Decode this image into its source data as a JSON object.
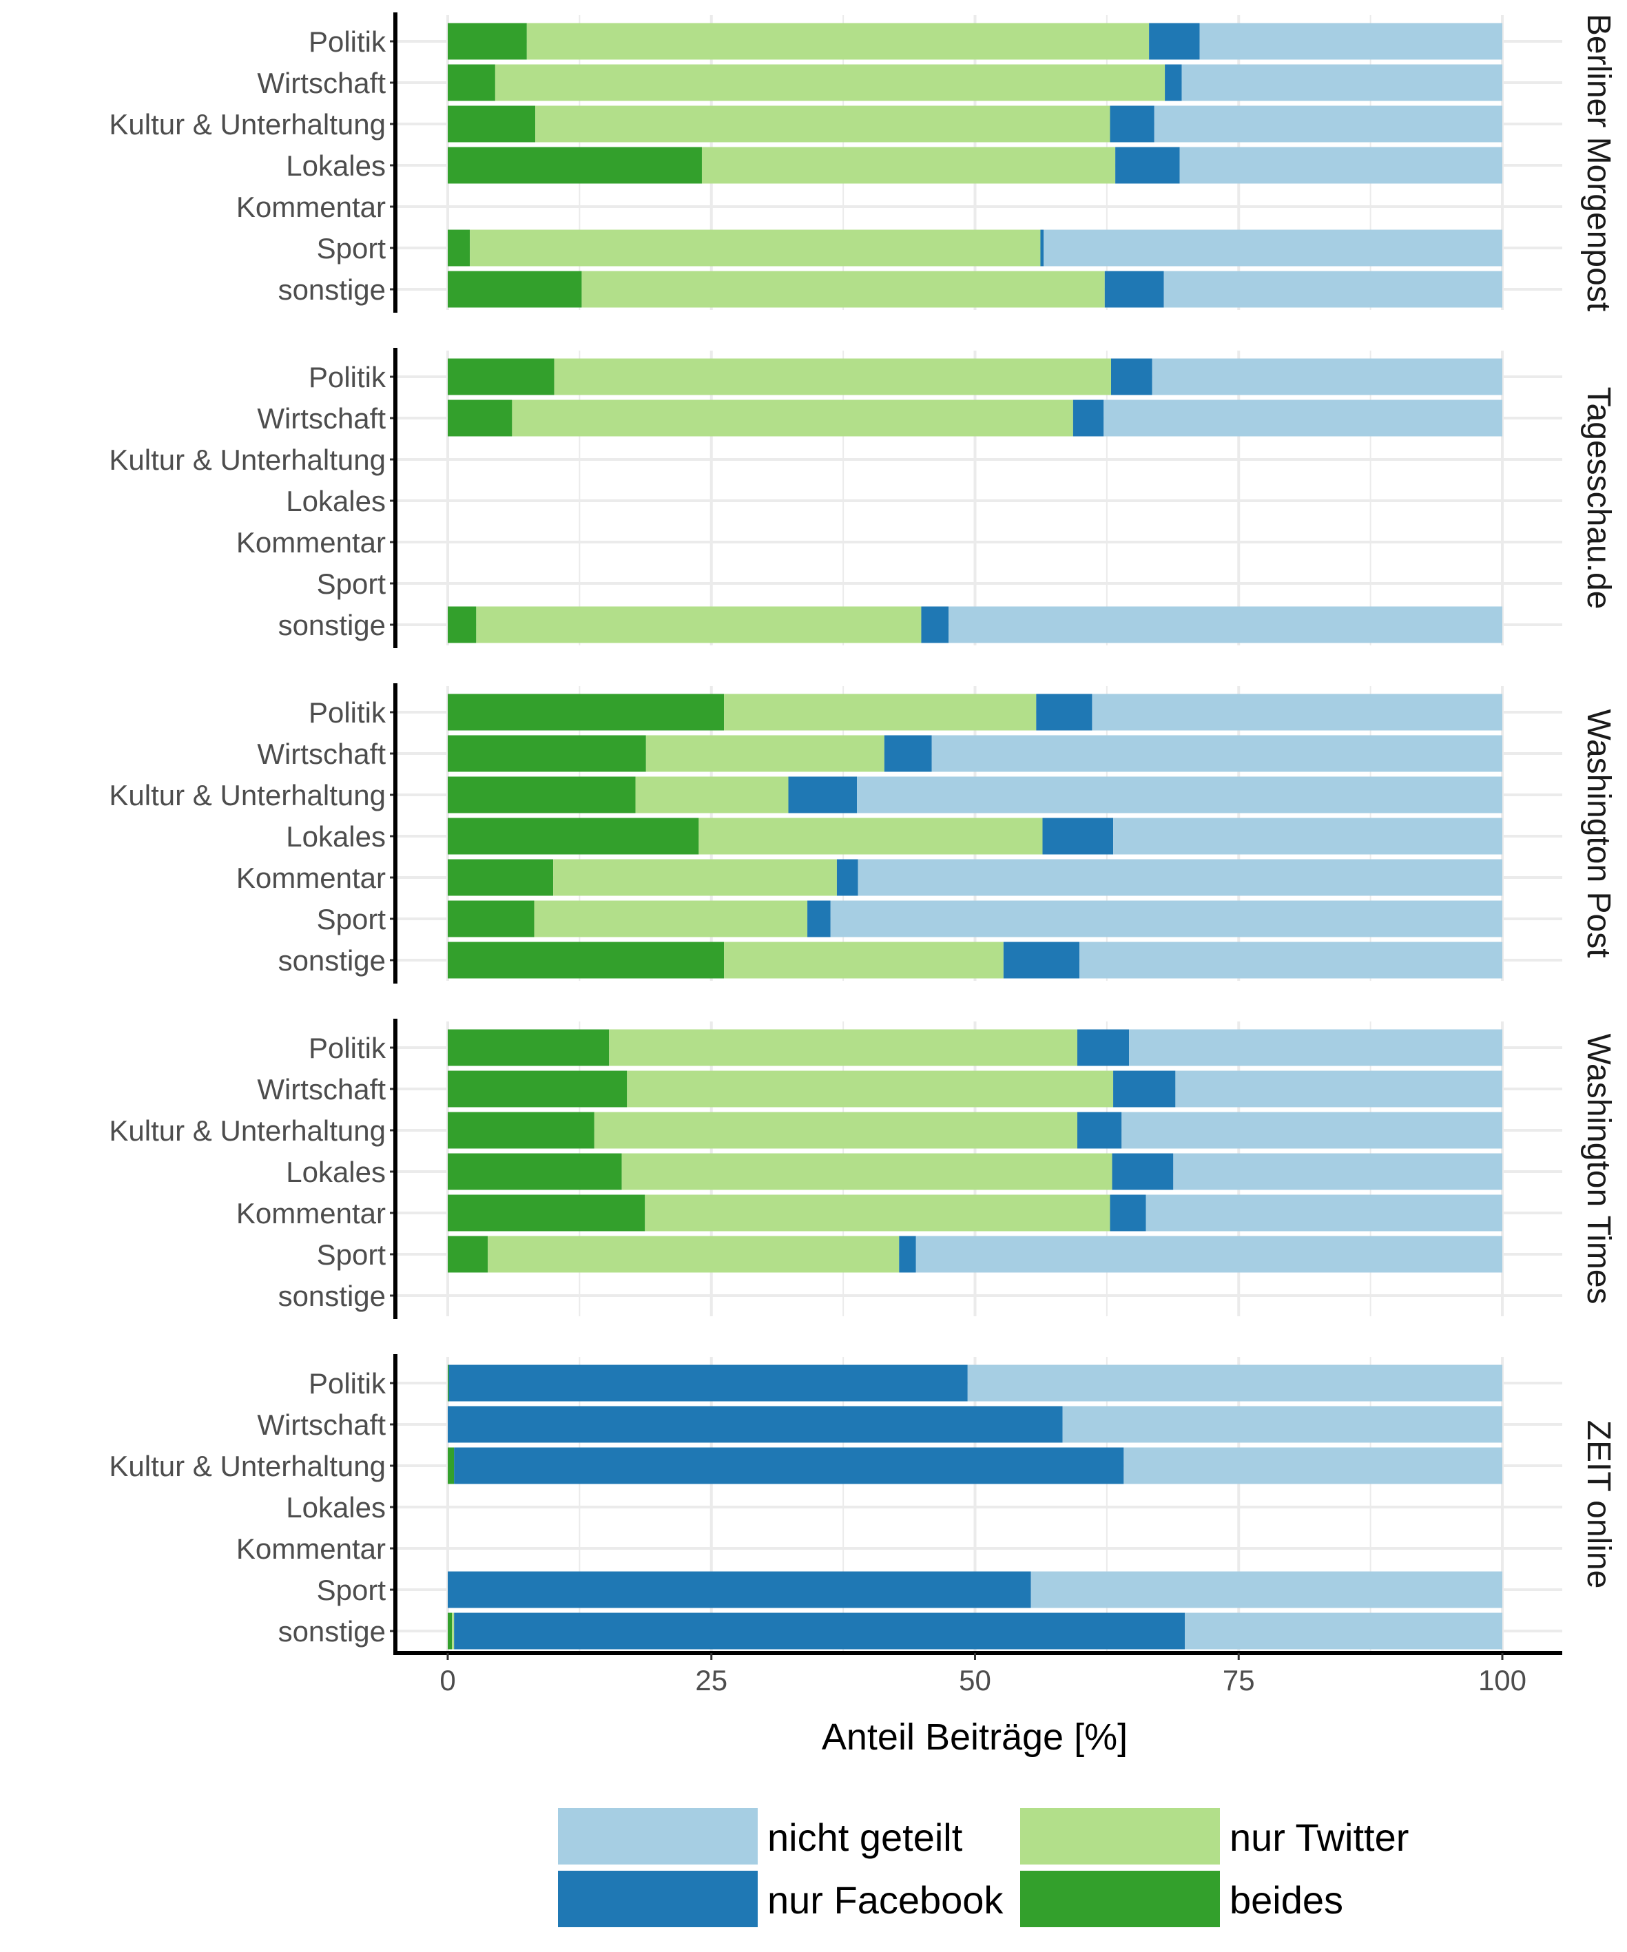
{
  "chart_data": {
    "type": "bar",
    "orientation": "horizontal",
    "stacked": true,
    "percent": true,
    "title": "",
    "xlabel": "Anteil Beiträge [%]",
    "ylabel": "",
    "xlim": [
      0,
      100
    ],
    "xticks": [
      "0",
      "25",
      "50",
      "75",
      "100"
    ],
    "xtick_values": [
      0,
      25,
      50,
      75,
      100
    ],
    "grid": true,
    "legend_position": "bottom",
    "categories": [
      "Politik",
      "Wirtschaft",
      "Kultur & Unterhaltung",
      "Lokales",
      "Kommentar",
      "Sport",
      "sonstige"
    ],
    "stack_order": [
      "beides",
      "nur Twitter",
      "nur Facebook",
      "nicht geteilt"
    ],
    "legend": [
      {
        "label": "nicht geteilt",
        "color": "#a6cee3"
      },
      {
        "label": "nur Twitter",
        "color": "#b2df8a"
      },
      {
        "label": "nur Facebook",
        "color": "#1f78b4"
      },
      {
        "label": "beides",
        "color": "#33a02c"
      }
    ],
    "colors": {
      "beides": "#33a02c",
      "nur Twitter": "#b2df8a",
      "nur Facebook": "#1f78b4",
      "nicht geteilt": "#a6cee3"
    },
    "facets": [
      {
        "name": "Berliner Morgenpost",
        "rows": [
          {
            "category": "Politik",
            "beides": 7.5,
            "nur Twitter": 59.0,
            "nur Facebook": 4.8,
            "nicht geteilt": 28.7
          },
          {
            "category": "Wirtschaft",
            "beides": 4.5,
            "nur Twitter": 63.5,
            "nur Facebook": 1.6,
            "nicht geteilt": 30.4
          },
          {
            "category": "Kultur & Unterhaltung",
            "beides": 8.3,
            "nur Twitter": 54.5,
            "nur Facebook": 4.2,
            "nicht geteilt": 33.0
          },
          {
            "category": "Lokales",
            "beides": 24.1,
            "nur Twitter": 39.2,
            "nur Facebook": 6.1,
            "nicht geteilt": 30.6
          },
          {
            "category": "Kommentar",
            "beides": null,
            "nur Twitter": null,
            "nur Facebook": null,
            "nicht geteilt": null
          },
          {
            "category": "Sport",
            "beides": 2.1,
            "nur Twitter": 54.1,
            "nur Facebook": 0.3,
            "nicht geteilt": 43.5
          },
          {
            "category": "sonstige",
            "beides": 12.7,
            "nur Twitter": 49.6,
            "nur Facebook": 5.6,
            "nicht geteilt": 32.1
          }
        ]
      },
      {
        "name": "Tagesschau.de",
        "rows": [
          {
            "category": "Politik",
            "beides": 10.1,
            "nur Twitter": 52.8,
            "nur Facebook": 3.9,
            "nicht geteilt": 33.2
          },
          {
            "category": "Wirtschaft",
            "beides": 6.1,
            "nur Twitter": 53.2,
            "nur Facebook": 2.9,
            "nicht geteilt": 37.8
          },
          {
            "category": "Kultur & Unterhaltung",
            "beides": null,
            "nur Twitter": null,
            "nur Facebook": null,
            "nicht geteilt": null
          },
          {
            "category": "Lokales",
            "beides": null,
            "nur Twitter": null,
            "nur Facebook": null,
            "nicht geteilt": null
          },
          {
            "category": "Kommentar",
            "beides": null,
            "nur Twitter": null,
            "nur Facebook": null,
            "nicht geteilt": null
          },
          {
            "category": "Sport",
            "beides": null,
            "nur Twitter": null,
            "nur Facebook": null,
            "nicht geteilt": null
          },
          {
            "category": "sonstige",
            "beides": 2.7,
            "nur Twitter": 42.2,
            "nur Facebook": 2.6,
            "nicht geteilt": 52.5
          }
        ]
      },
      {
        "name": "Washington Post",
        "rows": [
          {
            "category": "Politik",
            "beides": 26.2,
            "nur Twitter": 29.6,
            "nur Facebook": 5.3,
            "nicht geteilt": 38.9
          },
          {
            "category": "Wirtschaft",
            "beides": 18.8,
            "nur Twitter": 22.6,
            "nur Facebook": 4.5,
            "nicht geteilt": 54.1
          },
          {
            "category": "Kultur & Unterhaltung",
            "beides": 17.8,
            "nur Twitter": 14.5,
            "nur Facebook": 6.5,
            "nicht geteilt": 61.2
          },
          {
            "category": "Lokales",
            "beides": 23.8,
            "nur Twitter": 32.6,
            "nur Facebook": 6.7,
            "nicht geteilt": 36.9
          },
          {
            "category": "Kommentar",
            "beides": 10.0,
            "nur Twitter": 26.9,
            "nur Facebook": 2.0,
            "nicht geteilt": 61.1
          },
          {
            "category": "Sport",
            "beides": 8.2,
            "nur Twitter": 25.9,
            "nur Facebook": 2.2,
            "nicht geteilt": 63.7
          },
          {
            "category": "sonstige",
            "beides": 26.2,
            "nur Twitter": 26.5,
            "nur Facebook": 7.2,
            "nicht geteilt": 40.1
          }
        ]
      },
      {
        "name": "Washington Times",
        "rows": [
          {
            "category": "Politik",
            "beides": 15.3,
            "nur Twitter": 44.4,
            "nur Facebook": 4.9,
            "nicht geteilt": 35.4
          },
          {
            "category": "Wirtschaft",
            "beides": 17.0,
            "nur Twitter": 46.1,
            "nur Facebook": 5.9,
            "nicht geteilt": 31.0
          },
          {
            "category": "Kultur & Unterhaltung",
            "beides": 13.9,
            "nur Twitter": 45.8,
            "nur Facebook": 4.2,
            "nicht geteilt": 36.1
          },
          {
            "category": "Lokales",
            "beides": 16.5,
            "nur Twitter": 46.5,
            "nur Facebook": 5.8,
            "nicht geteilt": 31.2
          },
          {
            "category": "Kommentar",
            "beides": 18.7,
            "nur Twitter": 44.1,
            "nur Facebook": 3.4,
            "nicht geteilt": 33.8
          },
          {
            "category": "Sport",
            "beides": 3.8,
            "nur Twitter": 39.0,
            "nur Facebook": 1.6,
            "nicht geteilt": 55.6
          },
          {
            "category": "sonstige",
            "beides": null,
            "nur Twitter": null,
            "nur Facebook": null,
            "nicht geteilt": null
          }
        ]
      },
      {
        "name": "ZEIT online",
        "rows": [
          {
            "category": "Politik",
            "beides": 0.1,
            "nur Twitter": 0.0,
            "nur Facebook": 49.2,
            "nicht geteilt": 50.7
          },
          {
            "category": "Wirtschaft",
            "beides": 0.0,
            "nur Twitter": 0.0,
            "nur Facebook": 58.3,
            "nicht geteilt": 41.7
          },
          {
            "category": "Kultur & Unterhaltung",
            "beides": 0.6,
            "nur Twitter": 0.0,
            "nur Facebook": 63.5,
            "nicht geteilt": 35.9
          },
          {
            "category": "Lokales",
            "beides": null,
            "nur Twitter": null,
            "nur Facebook": null,
            "nicht geteilt": null
          },
          {
            "category": "Kommentar",
            "beides": null,
            "nur Twitter": null,
            "nur Facebook": null,
            "nicht geteilt": null
          },
          {
            "category": "Sport",
            "beides": 0.0,
            "nur Twitter": 0.0,
            "nur Facebook": 55.3,
            "nicht geteilt": 44.7
          },
          {
            "category": "sonstige",
            "beides": 0.4,
            "nur Twitter": 0.2,
            "nur Facebook": 69.3,
            "nicht geteilt": 30.1
          }
        ]
      }
    ]
  }
}
